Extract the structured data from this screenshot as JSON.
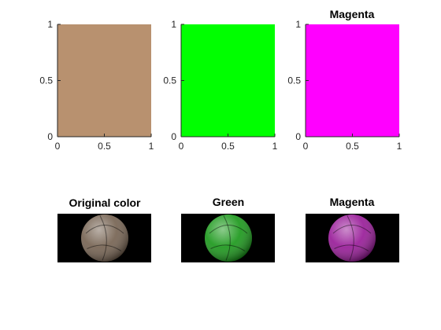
{
  "figure": {
    "swatches": [
      {
        "name": "swatch-original",
        "title": "",
        "color": "#b8916f"
      },
      {
        "name": "swatch-green",
        "title": "",
        "color": "#00ff00"
      },
      {
        "name": "swatch-magenta",
        "title": "Magenta",
        "color": "#ff00ff"
      }
    ],
    "images": [
      {
        "name": "image-original",
        "title": "Original color",
        "tint": "#b8916f"
      },
      {
        "name": "image-green",
        "title": "Green",
        "tint": "#00ff00"
      },
      {
        "name": "image-magenta",
        "title": "Magenta",
        "tint": "#ff00ff"
      }
    ],
    "axes": {
      "x_ticks": [
        "0",
        "0.5",
        "1"
      ],
      "y_ticks": [
        "0",
        "0.5",
        "1"
      ],
      "xlim": [
        0,
        1
      ],
      "ylim": [
        0,
        1
      ]
    }
  }
}
